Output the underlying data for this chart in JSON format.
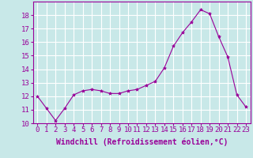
{
  "x": [
    0,
    1,
    2,
    3,
    4,
    5,
    6,
    7,
    8,
    9,
    10,
    11,
    12,
    13,
    14,
    15,
    16,
    17,
    18,
    19,
    20,
    21,
    22,
    23
  ],
  "y": [
    12.0,
    11.1,
    10.2,
    11.1,
    12.1,
    12.4,
    12.5,
    12.4,
    12.2,
    12.2,
    12.4,
    12.5,
    12.8,
    13.1,
    14.1,
    15.7,
    16.7,
    17.5,
    18.4,
    18.1,
    16.4,
    14.9,
    12.1,
    11.2
  ],
  "line_color": "#990099",
  "marker": "*",
  "marker_size": 3,
  "bg_color": "#c8e8e8",
  "grid_color": "#ffffff",
  "xlabel": "Windchill (Refroidissement éolien,°C)",
  "xlabel_fontsize": 7,
  "tick_fontsize": 6.5,
  "ylim": [
    10,
    19
  ],
  "yticks": [
    10,
    11,
    12,
    13,
    14,
    15,
    16,
    17,
    18
  ],
  "xticks": [
    0,
    1,
    2,
    3,
    4,
    5,
    6,
    7,
    8,
    9,
    10,
    11,
    12,
    13,
    14,
    15,
    16,
    17,
    18,
    19,
    20,
    21,
    22,
    23
  ],
  "xlim": [
    -0.5,
    23.5
  ]
}
